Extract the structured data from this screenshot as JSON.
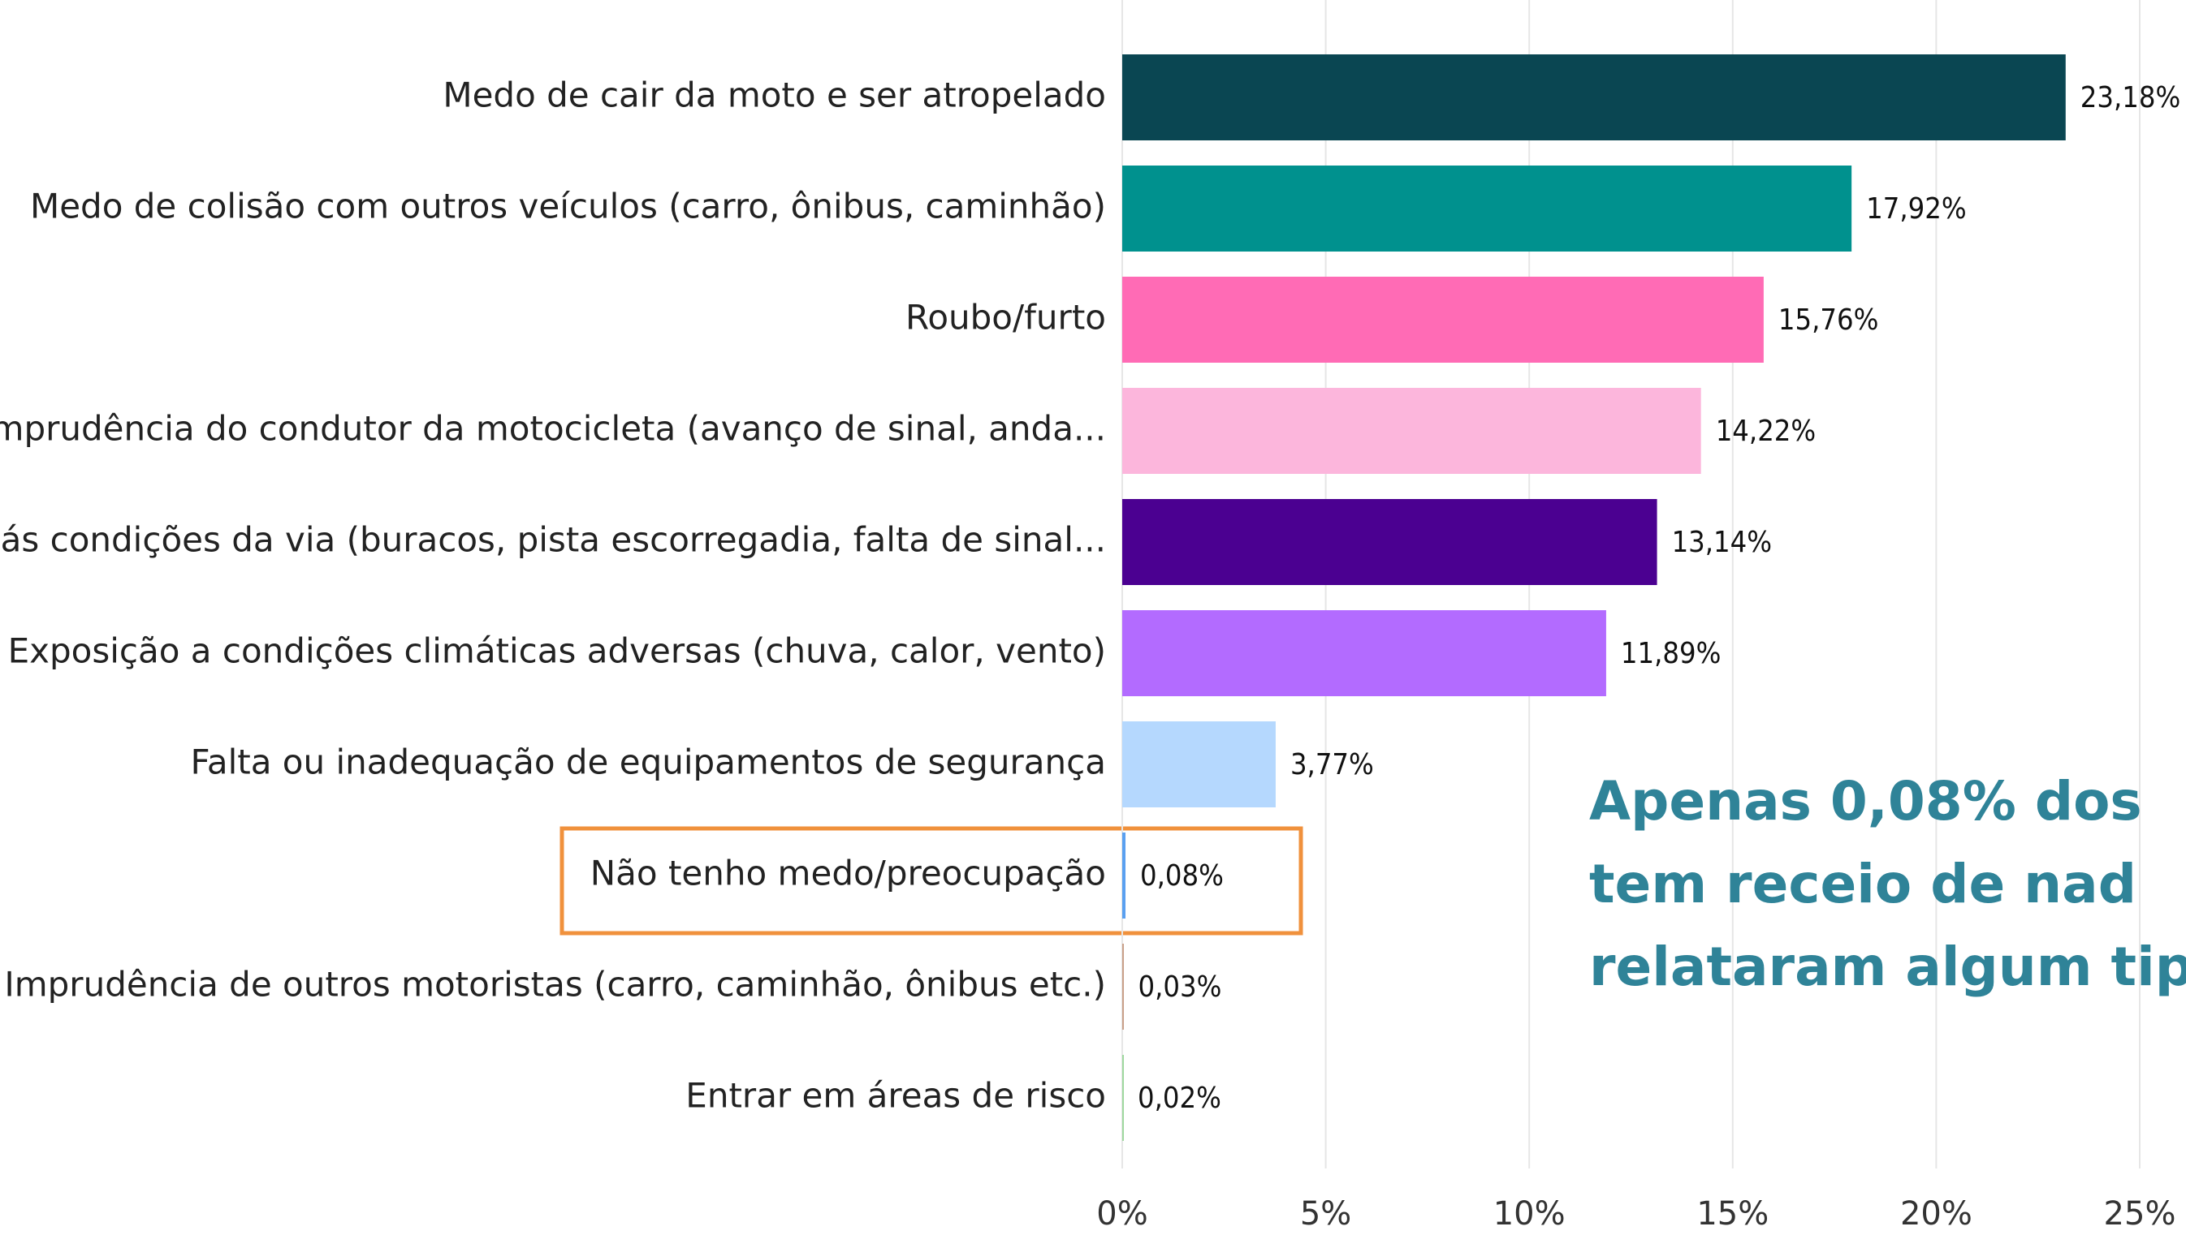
{
  "chart_data": {
    "type": "barh",
    "categories": [
      "Medo de cair da moto e ser atropelado",
      "Medo de colisão com outros veículos (carro, ônibus, caminhão)",
      "Roubo/furto",
      "Imprudência do condutor da motocicleta (avanço de sinal, anda...",
      "Más condições da via (buracos, pista escorregadia, falta de sinal...",
      "Exposição a condições climáticas adversas (chuva, calor, vento)",
      "Falta ou inadequação de equipamentos de segurança",
      "Não tenho medo/preocupação",
      "Imprudência de outros motoristas (carro, caminhão, ônibus etc.)",
      "Entrar em áreas de risco"
    ],
    "values": [
      23.18,
      17.92,
      15.76,
      14.22,
      13.14,
      11.89,
      3.77,
      0.08,
      0.03,
      0.02
    ],
    "value_labels": [
      "23,18%",
      "17,92%",
      "15,76%",
      "14,22%",
      "13,14%",
      "11,89%",
      "3,77%",
      "0,08%",
      "0,03%",
      "0,02%"
    ],
    "colors": [
      "#0a4652",
      "#00918e",
      "#ff6bb5",
      "#fcb6dc",
      "#4b0091",
      "#b36bff",
      "#b5d8fe",
      "#5aa0f0",
      "#c9a08a",
      "#9fd89f"
    ],
    "xlim": [
      0,
      25
    ],
    "xticks": [
      {
        "value": 0,
        "label": "0%"
      },
      {
        "value": 5,
        "label": "5%"
      },
      {
        "value": 10,
        "label": "10%"
      },
      {
        "value": 15,
        "label": "15%"
      },
      {
        "value": 20,
        "label": "20%"
      },
      {
        "value": 25,
        "label": "25%"
      }
    ],
    "grid": true,
    "annotation": [
      "Apenas 0,08% dos",
      "tem receio de nad",
      "relataram algum tip"
    ]
  }
}
